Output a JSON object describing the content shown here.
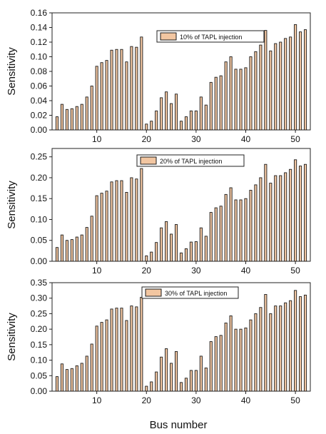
{
  "figure": {
    "xlabel": "Bus number",
    "bar_fill": "#f2c6a1",
    "bar_stroke": "#1a1a1a"
  },
  "chart_data": [
    {
      "type": "bar",
      "legend": "10% of TAPL injection",
      "legend_position": "top-right",
      "ylabel": "Sensitivity",
      "ylim": [
        0,
        0.16
      ],
      "yticks": [
        "0.00",
        "0.02",
        "0.04",
        "0.06",
        "0.08",
        "0.10",
        "0.12",
        "0.14",
        "0.16"
      ],
      "xlim": [
        1,
        53
      ],
      "xticks": [
        "10",
        "20",
        "30",
        "40",
        "50"
      ],
      "x": [
        2,
        3,
        4,
        5,
        6,
        7,
        8,
        9,
        10,
        11,
        12,
        13,
        14,
        15,
        16,
        17,
        18,
        19,
        20,
        21,
        22,
        23,
        24,
        25,
        26,
        27,
        28,
        29,
        30,
        31,
        32,
        33,
        34,
        35,
        36,
        37,
        38,
        39,
        40,
        41,
        42,
        43,
        44,
        45,
        46,
        47,
        48,
        49,
        50,
        51,
        52
      ],
      "values": [
        0.018,
        0.035,
        0.028,
        0.029,
        0.032,
        0.035,
        0.045,
        0.06,
        0.087,
        0.092,
        0.095,
        0.109,
        0.11,
        0.11,
        0.093,
        0.114,
        0.113,
        0.127,
        0.008,
        0.012,
        0.026,
        0.044,
        0.052,
        0.036,
        0.049,
        0.012,
        0.018,
        0.026,
        0.026,
        0.045,
        0.034,
        0.065,
        0.072,
        0.074,
        0.093,
        0.1,
        0.083,
        0.083,
        0.085,
        0.1,
        0.107,
        0.116,
        0.136,
        0.108,
        0.118,
        0.12,
        0.125,
        0.127,
        0.144,
        0.134,
        0.137
      ]
    },
    {
      "type": "bar",
      "legend": "20% of TAPL injection",
      "legend_position": "top-center",
      "ylabel": "Sensitivity",
      "ylim": [
        0,
        0.27
      ],
      "yticks": [
        "0.00",
        "0.05",
        "0.10",
        "0.15",
        "0.20",
        "0.25"
      ],
      "xlim": [
        1,
        53
      ],
      "xticks": [
        "10",
        "20",
        "30",
        "40",
        "50"
      ],
      "x": [
        2,
        3,
        4,
        5,
        6,
        7,
        8,
        9,
        10,
        11,
        12,
        13,
        14,
        15,
        16,
        17,
        18,
        19,
        20,
        21,
        22,
        23,
        24,
        25,
        26,
        27,
        28,
        29,
        30,
        31,
        32,
        33,
        34,
        35,
        36,
        37,
        38,
        39,
        40,
        41,
        42,
        43,
        44,
        45,
        46,
        47,
        48,
        49,
        50,
        51,
        52
      ],
      "values": [
        0.033,
        0.063,
        0.05,
        0.052,
        0.058,
        0.063,
        0.081,
        0.108,
        0.157,
        0.163,
        0.168,
        0.19,
        0.193,
        0.193,
        0.165,
        0.2,
        0.197,
        0.222,
        0.013,
        0.022,
        0.045,
        0.08,
        0.095,
        0.065,
        0.088,
        0.02,
        0.03,
        0.046,
        0.047,
        0.08,
        0.06,
        0.117,
        0.128,
        0.132,
        0.16,
        0.176,
        0.147,
        0.147,
        0.15,
        0.17,
        0.183,
        0.2,
        0.232,
        0.187,
        0.205,
        0.205,
        0.212,
        0.22,
        0.243,
        0.228,
        0.232
      ]
    },
    {
      "type": "bar",
      "legend": "30% of TAPL injection",
      "legend_position": "top-center",
      "ylabel": "Sensitivity",
      "ylim": [
        0,
        0.35
      ],
      "yticks": [
        "0.00",
        "0.05",
        "0.10",
        "0.15",
        "0.20",
        "0.25",
        "0.30",
        "0.35"
      ],
      "xlim": [
        1,
        53
      ],
      "xticks": [
        "10",
        "20",
        "30",
        "40",
        "50"
      ],
      "x": [
        2,
        3,
        4,
        5,
        6,
        7,
        8,
        9,
        10,
        11,
        12,
        13,
        14,
        15,
        16,
        17,
        18,
        19,
        20,
        21,
        22,
        23,
        24,
        25,
        26,
        27,
        28,
        29,
        30,
        31,
        32,
        33,
        34,
        35,
        36,
        37,
        38,
        39,
        40,
        41,
        42,
        43,
        44,
        45,
        46,
        47,
        48,
        49,
        50,
        51,
        52
      ],
      "values": [
        0.047,
        0.088,
        0.07,
        0.073,
        0.082,
        0.09,
        0.113,
        0.152,
        0.21,
        0.222,
        0.23,
        0.265,
        0.268,
        0.268,
        0.228,
        0.275,
        0.272,
        0.303,
        0.016,
        0.03,
        0.062,
        0.11,
        0.137,
        0.09,
        0.128,
        0.028,
        0.042,
        0.067,
        0.067,
        0.113,
        0.075,
        0.16,
        0.176,
        0.18,
        0.22,
        0.243,
        0.2,
        0.2,
        0.204,
        0.23,
        0.25,
        0.27,
        0.312,
        0.25,
        0.275,
        0.275,
        0.285,
        0.292,
        0.325,
        0.305,
        0.31
      ]
    }
  ]
}
